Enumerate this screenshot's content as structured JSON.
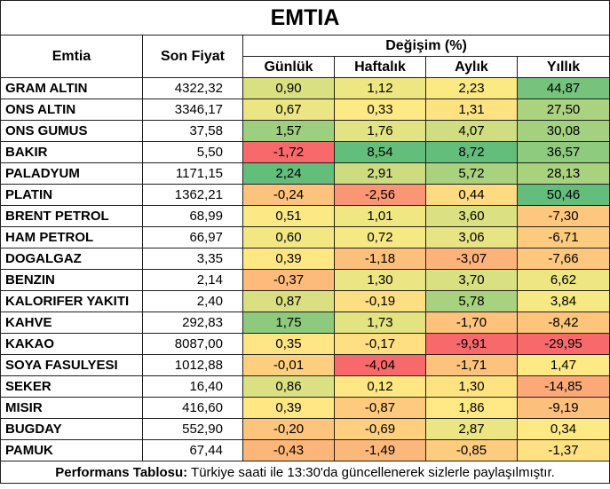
{
  "title": "EMTIA",
  "headers": {
    "commodity": "Emtia",
    "last_price": "Son Fiyat",
    "change_group": "Değişim (%)",
    "daily": "Günlük",
    "weekly": "Haftalık",
    "monthly": "Aylık",
    "yearly": "Yıllık"
  },
  "rows": [
    {
      "name": "GRAM ALTIN",
      "price": "4322,32",
      "daily": "0,90",
      "weekly": "1,12",
      "monthly": "2,23",
      "yearly": "44,87"
    },
    {
      "name": "ONS ALTIN",
      "price": "3346,17",
      "daily": "0,67",
      "weekly": "0,33",
      "monthly": "1,31",
      "yearly": "27,50"
    },
    {
      "name": "ONS GUMUS",
      "price": "37,58",
      "daily": "1,57",
      "weekly": "1,76",
      "monthly": "4,07",
      "yearly": "30,08"
    },
    {
      "name": "BAKIR",
      "price": "5,50",
      "daily": "-1,72",
      "weekly": "8,54",
      "monthly": "8,72",
      "yearly": "36,57"
    },
    {
      "name": "PALADYUM",
      "price": "1171,15",
      "daily": "2,24",
      "weekly": "2,91",
      "monthly": "5,72",
      "yearly": "28,13"
    },
    {
      "name": "PLATIN",
      "price": "1362,21",
      "daily": "-0,24",
      "weekly": "-2,56",
      "monthly": "0,44",
      "yearly": "50,46"
    },
    {
      "name": "BRENT PETROL",
      "price": "68,99",
      "daily": "0,51",
      "weekly": "1,01",
      "monthly": "3,60",
      "yearly": "-7,30"
    },
    {
      "name": "HAM PETROL",
      "price": "66,97",
      "daily": "0,60",
      "weekly": "0,72",
      "monthly": "3,06",
      "yearly": "-6,71"
    },
    {
      "name": "DOGALGAZ",
      "price": "3,35",
      "daily": "0,39",
      "weekly": "-1,18",
      "monthly": "-3,07",
      "yearly": "-7,66"
    },
    {
      "name": "BENZIN",
      "price": "2,14",
      "daily": "-0,37",
      "weekly": "1,30",
      "monthly": "3,70",
      "yearly": "6,62"
    },
    {
      "name": "KALORIFER YAKITI",
      "price": "2,40",
      "daily": "0,87",
      "weekly": "-0,19",
      "monthly": "5,78",
      "yearly": "3,84"
    },
    {
      "name": "KAHVE",
      "price": "292,83",
      "daily": "1,75",
      "weekly": "1,73",
      "monthly": "-1,70",
      "yearly": "-8,42"
    },
    {
      "name": "KAKAO",
      "price": "8087,00",
      "daily": "0,35",
      "weekly": "-0,17",
      "monthly": "-9,91",
      "yearly": "-29,95"
    },
    {
      "name": "SOYA FASULYESI",
      "price": "1012,88",
      "daily": "-0,01",
      "weekly": "-4,04",
      "monthly": "-1,71",
      "yearly": "1,47"
    },
    {
      "name": "SEKER",
      "price": "16,40",
      "daily": "0,86",
      "weekly": "0,12",
      "monthly": "1,30",
      "yearly": "-14,85"
    },
    {
      "name": "MISIR",
      "price": "416,60",
      "daily": "0,39",
      "weekly": "-0,87",
      "monthly": "1,86",
      "yearly": "-9,19"
    },
    {
      "name": "BUGDAY",
      "price": "552,90",
      "daily": "-0,20",
      "weekly": "-0,69",
      "monthly": "2,87",
      "yearly": "0,34"
    },
    {
      "name": "PAMUK",
      "price": "67,44",
      "daily": "-0,43",
      "weekly": "-1,49",
      "monthly": "-0,85",
      "yearly": "-1,37"
    }
  ],
  "footer": {
    "label": "Performans Tablosu:",
    "text": " Türkiye saati ile 13:30'da güncellenerek sizlerle paylaşılmıştır."
  },
  "colors": {
    "red": "#f8696b",
    "yellow": "#ffeb84",
    "green": "#63be7b"
  }
}
